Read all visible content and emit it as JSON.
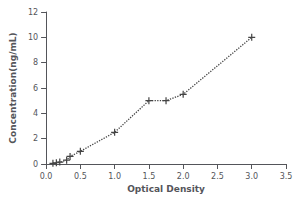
{
  "chart_data": {
    "type": "line",
    "x": [
      0.1,
      0.15,
      0.2,
      0.3,
      0.35,
      0.5,
      1.0,
      1.5,
      1.75,
      2.0,
      3.0
    ],
    "values": [
      0.05,
      0.1,
      0.15,
      0.3,
      0.6,
      1.0,
      2.5,
      5.0,
      5.0,
      5.5,
      10.0
    ],
    "xlabel": "Optical Density",
    "ylabel": "Concentration(ng/mL)",
    "xlim": [
      0,
      3.5
    ],
    "ylim": [
      0,
      12
    ],
    "xticks": [
      {
        "value": 0,
        "label": "0.0"
      },
      0.5,
      {
        "value": 1,
        "label": "1.0"
      },
      1.5,
      {
        "value": 2,
        "label": "2.0"
      },
      2.5,
      {
        "value": 3,
        "label": "3.0"
      },
      3.5
    ],
    "yticks": [
      0,
      2,
      4,
      6,
      8,
      10,
      12
    ],
    "color": "#444444",
    "marker": "+",
    "line_style": "dotted",
    "grid": false
  }
}
